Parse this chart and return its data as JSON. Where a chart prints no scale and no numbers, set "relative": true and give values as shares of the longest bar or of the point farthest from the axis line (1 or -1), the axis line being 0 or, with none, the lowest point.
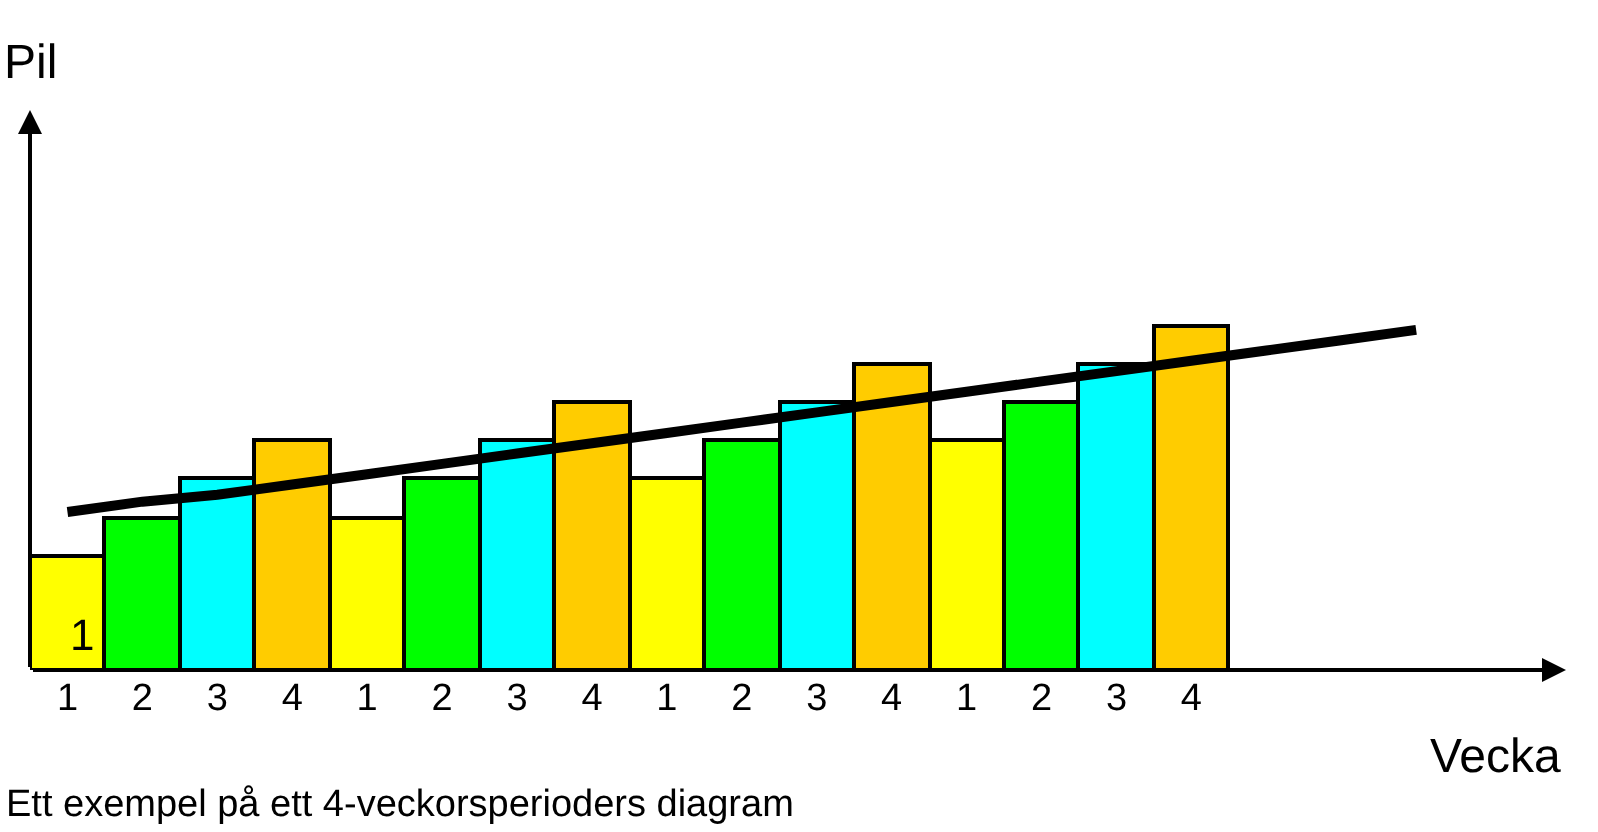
{
  "chart_data": {
    "type": "bar",
    "relative": true,
    "xlabel": "Vecka",
    "ylabel": "Pil",
    "categories": [
      "1",
      "2",
      "3",
      "4",
      "1",
      "2",
      "3",
      "4",
      "1",
      "2",
      "3",
      "4",
      "1",
      "2",
      "3",
      "4",
      null,
      null,
      null
    ],
    "series": [
      {
        "values": [
          0.33,
          0.44,
          0.56,
          0.67,
          0.44,
          0.56,
          0.67,
          0.78,
          0.56,
          0.67,
          0.78,
          0.89,
          0.67,
          0.78,
          0.89,
          1.0,
          null,
          null,
          null
        ],
        "colors": [
          "#ffff00",
          "#00ff00",
          "#00ffff",
          "#ffcc00",
          "#ffff00",
          "#00ff00",
          "#00ffff",
          "#ffcc00",
          "#ffff00",
          "#00ff00",
          "#00ffff",
          "#ffcc00",
          "#ffff00",
          "#00ff00",
          "#00ffff",
          "#ffcc00",
          "#ffff00",
          "#ffff00",
          "#ffff00"
        ]
      },
      {
        "type": "line",
        "values": [
          0.46,
          0.49,
          0.51,
          0.54,
          0.57,
          0.6,
          0.63,
          0.66,
          0.69,
          0.72,
          0.75,
          0.78,
          0.81,
          0.84,
          0.87,
          0.9,
          0.93,
          0.96,
          0.99
        ],
        "color": "#000000"
      }
    ],
    "annotations": [
      "1",
      "Ett exempel på ett 4-veckorsperioders diagram"
    ]
  }
}
